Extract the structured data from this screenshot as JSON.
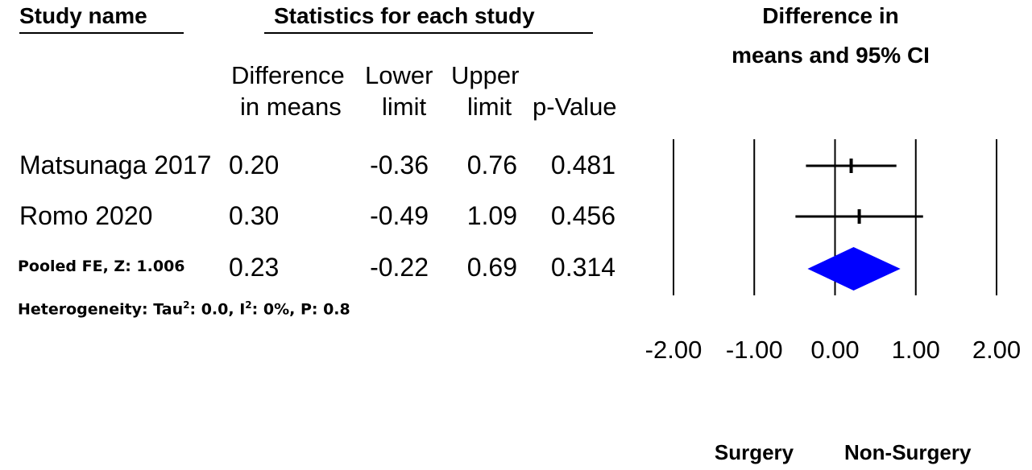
{
  "headers": {
    "study_name": "Study name",
    "statistics": "Statistics for each study",
    "plot_title_line1": "Difference in",
    "plot_title_line2": "means and 95% CI"
  },
  "columns": {
    "diff_line1": "Difference",
    "diff_line2": "in means",
    "lower_line1": "Lower",
    "lower_line2": "limit",
    "upper_line1": "Upper",
    "upper_line2": "limit",
    "p_line2": "p-Value"
  },
  "rows": [
    {
      "study": "Matsunaga 2017",
      "diff": "0.20",
      "lower": "-0.36",
      "upper": "0.76",
      "p": "0.481"
    },
    {
      "study": "Romo 2020",
      "diff": "0.30",
      "lower": "-0.49",
      "upper": "1.09",
      "p": "0.456"
    }
  ],
  "pooled": {
    "study": "Pooled FE, Z: 1.006",
    "diff": "0.23",
    "lower": "-0.22",
    "upper": "0.69",
    "p": "0.314"
  },
  "heterogeneity": {
    "prefix": "Heterogeneity: Tau",
    "tau_sup": "2",
    "mid": ": 0.0, I",
    "i_sup": "2",
    "suffix": ": 0%, P: 0.8"
  },
  "favors": {
    "left": "Surgery",
    "right": "Non-Surgery"
  },
  "chart_data": {
    "type": "forest",
    "xlim": [
      -2,
      2
    ],
    "ticks": [
      -2,
      -1,
      0,
      1,
      2
    ],
    "tick_labels": [
      "-2.00",
      "-1.00",
      "0.00",
      "1.00",
      "2.00"
    ],
    "studies": [
      {
        "name": "Matsunaga 2017",
        "estimate": 0.2,
        "lower": -0.36,
        "upper": 0.76
      },
      {
        "name": "Romo 2020",
        "estimate": 0.3,
        "lower": -0.49,
        "upper": 1.09
      }
    ],
    "pooled": {
      "name": "Pooled FE",
      "estimate": 0.23,
      "lower": -0.22,
      "upper": 0.69
    },
    "colors": {
      "diamond": "#0000ff",
      "lines": "#000000"
    }
  }
}
